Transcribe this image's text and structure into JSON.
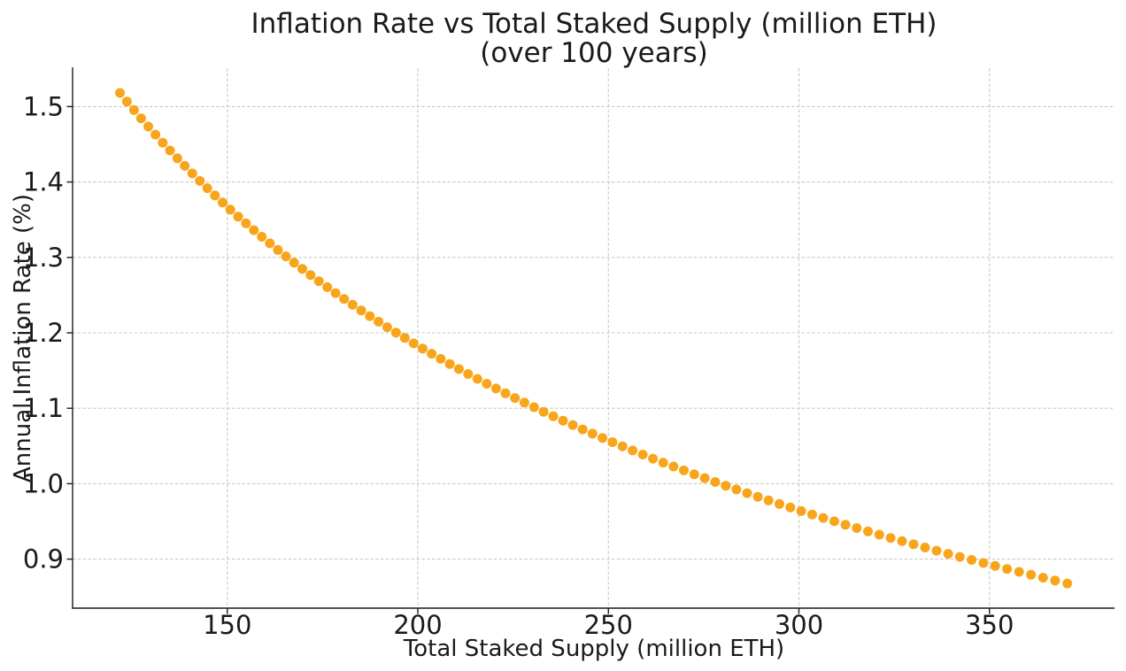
{
  "figure": {
    "background": "#ffffff"
  },
  "chart_data": {
    "type": "scatter",
    "title": "Inflation Rate vs Total Staked Supply (million ETH)",
    "subtitle": "(over 100 years)",
    "xlabel": "Total Staked Supply (million ETH)",
    "ylabel": "Annual Inflation Rate (%)",
    "xlim": [
      109.4,
      382.8
    ],
    "ylim": [
      0.835,
      1.551
    ],
    "x_ticks": [
      "150",
      "200",
      "250",
      "300",
      "350"
    ],
    "x_tick_values": [
      150,
      200,
      250,
      300,
      350
    ],
    "y_ticks": [
      "0.9",
      "1.0",
      "1.1",
      "1.2",
      "1.3",
      "1.4",
      "1.5"
    ],
    "y_tick_values": [
      0.9,
      1.0,
      1.1,
      1.2,
      1.3,
      1.4,
      1.5
    ],
    "grid": true,
    "grid_style": "dashed",
    "legend_position": "none",
    "marker": {
      "shape": "circle",
      "radius_px": 5.5
    },
    "colors": {
      "marker": "#F9A51B",
      "grid": "#c8c8c8",
      "spine": "#1a1a1a",
      "text": "#1a1a1a",
      "background": "#ffffff"
    },
    "series": [
      {
        "name": "Annual inflation rate vs total staked supply",
        "points": [
          [
            121.82,
            1.5181
          ],
          [
            123.66,
            1.5067
          ],
          [
            125.51,
            1.4955
          ],
          [
            127.37,
            1.4844
          ],
          [
            129.25,
            1.4735
          ],
          [
            131.14,
            1.4628
          ],
          [
            133.04,
            1.4522
          ],
          [
            134.96,
            1.4418
          ],
          [
            136.89,
            1.4315
          ],
          [
            138.84,
            1.4214
          ],
          [
            140.8,
            1.4114
          ],
          [
            142.77,
            1.4015
          ],
          [
            144.76,
            1.3918
          ],
          [
            146.76,
            1.3822
          ],
          [
            148.77,
            1.3728
          ],
          [
            150.8,
            1.3634
          ],
          [
            152.84,
            1.3542
          ],
          [
            154.9,
            1.3452
          ],
          [
            156.97,
            1.3362
          ],
          [
            159.05,
            1.3274
          ],
          [
            161.15,
            1.3187
          ],
          [
            163.26,
            1.31
          ],
          [
            165.38,
            1.3015
          ],
          [
            167.52,
            1.2931
          ],
          [
            169.68,
            1.2849
          ],
          [
            171.84,
            1.2767
          ],
          [
            174.02,
            1.2686
          ],
          [
            176.22,
            1.2606
          ],
          [
            178.42,
            1.2527
          ],
          [
            180.64,
            1.245
          ],
          [
            182.88,
            1.2373
          ],
          [
            185.13,
            1.2297
          ],
          [
            187.39,
            1.2222
          ],
          [
            189.67,
            1.2148
          ],
          [
            191.96,
            1.2075
          ],
          [
            194.26,
            1.2003
          ],
          [
            196.58,
            1.1932
          ],
          [
            198.91,
            1.1861
          ],
          [
            201.26,
            1.1791
          ],
          [
            203.62,
            1.1723
          ],
          [
            205.99,
            1.1655
          ],
          [
            208.38,
            1.1587
          ],
          [
            210.78,
            1.152
          ],
          [
            213.19,
            1.1455
          ],
          [
            215.62,
            1.139
          ],
          [
            218.06,
            1.1325
          ],
          [
            220.52,
            1.1262
          ],
          [
            222.99,
            1.1199
          ],
          [
            225.47,
            1.1137
          ],
          [
            227.97,
            1.1075
          ],
          [
            230.48,
            1.1014
          ],
          [
            233.0,
            1.0954
          ],
          [
            235.54,
            1.0895
          ],
          [
            238.09,
            1.0836
          ],
          [
            240.66,
            1.0778
          ],
          [
            243.24,
            1.072
          ],
          [
            245.83,
            1.0663
          ],
          [
            248.44,
            1.0606
          ],
          [
            251.06,
            1.0551
          ],
          [
            253.69,
            1.0496
          ],
          [
            256.35,
            1.0441
          ],
          [
            259.01,
            1.0387
          ],
          [
            261.69,
            1.0333
          ],
          [
            264.37,
            1.028
          ],
          [
            267.08,
            1.0228
          ],
          [
            269.8,
            1.0176
          ],
          [
            272.53,
            1.0125
          ],
          [
            275.27,
            1.0074
          ],
          [
            278.03,
            1.0023
          ],
          [
            280.8,
            0.9973
          ],
          [
            283.59,
            0.9924
          ],
          [
            286.39,
            0.9875
          ],
          [
            289.21,
            0.9827
          ],
          [
            292.03,
            0.9779
          ],
          [
            294.88,
            0.9731
          ],
          [
            297.73,
            0.9684
          ],
          [
            300.6,
            0.9638
          ],
          [
            303.48,
            0.9592
          ],
          [
            306.38,
            0.9546
          ],
          [
            309.29,
            0.9501
          ],
          [
            312.22,
            0.9456
          ],
          [
            315.16,
            0.9412
          ],
          [
            318.11,
            0.9368
          ],
          [
            321.08,
            0.9324
          ],
          [
            324.05,
            0.9281
          ],
          [
            327.05,
            0.9238
          ],
          [
            330.06,
            0.9196
          ],
          [
            333.08,
            0.9154
          ],
          [
            336.11,
            0.9112
          ],
          [
            339.16,
            0.9071
          ],
          [
            342.22,
            0.903
          ],
          [
            345.3,
            0.899
          ],
          [
            348.39,
            0.8949
          ],
          [
            351.49,
            0.891
          ],
          [
            354.61,
            0.887
          ],
          [
            357.75,
            0.8831
          ],
          [
            360.89,
            0.8792
          ],
          [
            364.05,
            0.8754
          ],
          [
            367.22,
            0.8716
          ],
          [
            370.41,
            0.8678
          ]
        ]
      }
    ]
  }
}
